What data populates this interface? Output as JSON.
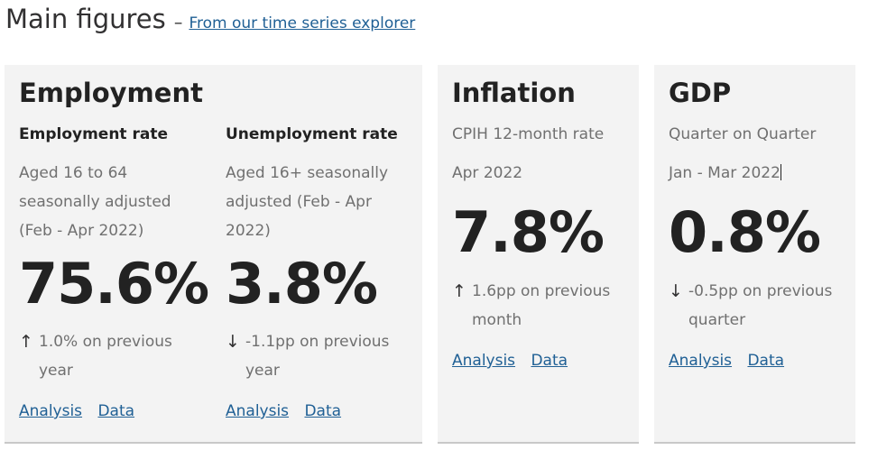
{
  "header": {
    "title": "Main figures",
    "separator": "–",
    "link_text": "From our time series explorer"
  },
  "employment": {
    "title": "Employment",
    "employment_rate": {
      "label": "Employment rate",
      "description": "Aged 16 to 64 seasonally adjusted (Feb - Apr 2022)",
      "value": "75.6%",
      "change_arrow": "↑",
      "change_text": "1.0% on previous year",
      "analysis_link": "Analysis",
      "data_link": "Data"
    },
    "unemployment_rate": {
      "label": "Unemployment rate",
      "description": "Aged 16+ seasonally adjusted (Feb - Apr 2022)",
      "value": "3.8%",
      "change_arrow": "↓",
      "change_text": "-1.1pp on previous year",
      "analysis_link": "Analysis",
      "data_link": "Data"
    }
  },
  "inflation": {
    "title": "Inflation",
    "label": "CPIH 12-month rate",
    "period": "Apr 2022",
    "value": "7.8%",
    "change_arrow": "↑",
    "change_text": "1.6pp on previous month",
    "analysis_link": "Analysis",
    "data_link": "Data"
  },
  "gdp": {
    "title": "GDP",
    "label": "Quarter on Quarter",
    "period": "Jan - Mar 2022",
    "value": "0.8%",
    "change_arrow": "↓",
    "change_text": "-0.5pp on previous quarter",
    "analysis_link": "Analysis",
    "data_link": "Data"
  },
  "colors": {
    "link": "#206095",
    "card_background": "#f3f3f3",
    "muted_text": "#707070",
    "heading_text": "#222222"
  }
}
